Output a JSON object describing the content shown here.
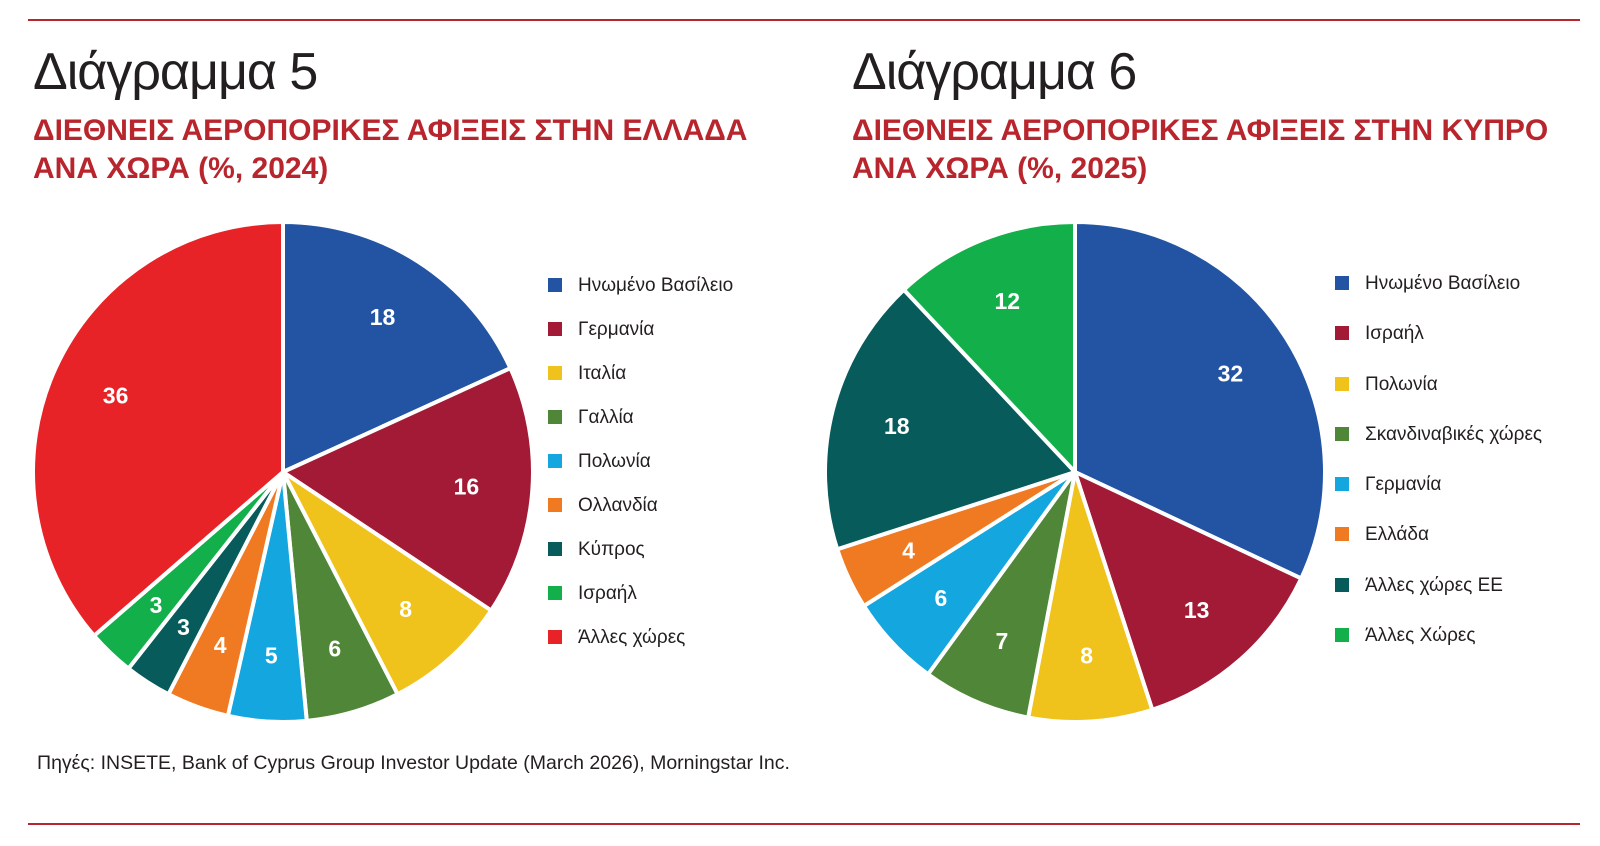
{
  "charts": [
    {
      "title": "Διάγραμμα 5",
      "subtitle_lines": [
        "ΔΙΕΘΝΕΙΣ ΑΕΡΟΠΟΡΙΚΕΣ ΑΦΙΞΕΙΣ ΣΤΗΝ ΕΛΛΑΔΑ",
        "ΑΝΑ ΧΩΡΑ (%, 2024)"
      ]
    },
    {
      "title": "Διάγραμμα 6",
      "subtitle_lines": [
        "ΔΙΕΘΝΕΙΣ ΑΕΡΟΠΟΡΙΚΕΣ ΑΦΙΞΕΙΣ ΣΤΗΝ ΚΥΠΡΟ",
        "ΑΝΑ ΧΩΡΑ (%, 2025)"
      ]
    }
  ],
  "chart_data": [
    {
      "type": "pie",
      "title": "Διάγραμμα 5",
      "subtitle": "ΔΙΕΘΝΕΙΣ ΑΕΡΟΠΟΡΙΚΕΣ ΑΦΙΞΕΙΣ ΣΤΗΝ ΕΛΛΑΔΑ ΑΝΑ ΧΩΡΑ (%, 2024)",
      "legend_position": "right",
      "slices": [
        {
          "label": "Ηνωμένο Βασίλειο",
          "value": 18,
          "color": "#2353a3"
        },
        {
          "label": "Γερμανία",
          "value": 16,
          "color": "#a21a35"
        },
        {
          "label": "Ιταλία",
          "value": 8,
          "color": "#f0c21c"
        },
        {
          "label": "Γαλλία",
          "value": 6,
          "color": "#4f8637"
        },
        {
          "label": "Πολωνία",
          "value": 5,
          "color": "#14a6de"
        },
        {
          "label": "Ολλανδία",
          "value": 4,
          "color": "#ef7a22"
        },
        {
          "label": "Κύπρος",
          "value": 3,
          "color": "#075b5b"
        },
        {
          "label": "Ισραήλ",
          "value": 3,
          "color": "#12af4a"
        },
        {
          "label": "Άλλες χώρες",
          "value": 36,
          "color": "#e82327"
        }
      ]
    },
    {
      "type": "pie",
      "title": "Διάγραμμα 6",
      "subtitle": "ΔΙΕΘΝΕΙΣ ΑΕΡΟΠΟΡΙΚΕΣ ΑΦΙΞΕΙΣ ΣΤΗΝ ΚΥΠΡΟ ΑΝΑ ΧΩΡΑ (%, 2025)",
      "legend_position": "right",
      "slices": [
        {
          "label": "Ηνωμένο Βασίλειο",
          "value": 32,
          "color": "#2353a3"
        },
        {
          "label": "Ισραήλ",
          "value": 13,
          "color": "#a21a35"
        },
        {
          "label": "Πολωνία",
          "value": 8,
          "color": "#f0c21c"
        },
        {
          "label": "Σκανδιναβικές χώρες",
          "value": 7,
          "color": "#4f8637"
        },
        {
          "label": "Γερμανία",
          "value": 6,
          "color": "#14a6de"
        },
        {
          "label": "Ελλάδα",
          "value": 4,
          "color": "#ef7a22"
        },
        {
          "label": "Άλλες χώρες ΕΕ",
          "value": 18,
          "color": "#075b5b"
        },
        {
          "label": "Άλλες Χώρες",
          "value": 12,
          "color": "#12af4a"
        }
      ]
    }
  ],
  "source": "Πηγές: INSETE, Bank of Cyprus Group Investor Update (March 2026), Morningstar Inc.",
  "colors": {
    "accent_red": "#b8252d",
    "rule": "#b8252d",
    "text": "#231f20"
  }
}
